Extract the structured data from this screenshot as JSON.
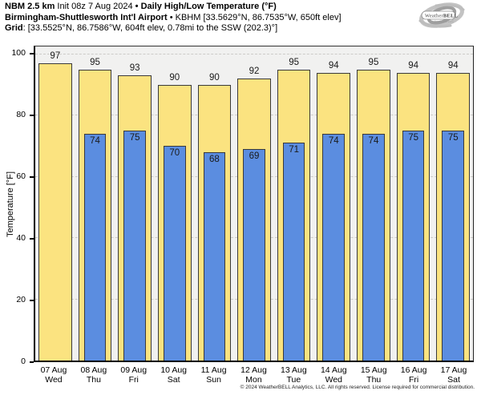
{
  "header": {
    "title_bold_prefix": "NBM 2.5 km",
    "title_regular": "Init 08z 7 Aug 2024",
    "title_bold_suffix": "• Daily High/Low Temperature (°F)",
    "subtitle_bold": "Birmingham-Shuttlesworth Int'l Airport",
    "subtitle_regular": "• KBHM [33.5629°N, 86.7535°W, 650ft elev]",
    "grid_label": "Grid",
    "grid_value": ": [33.5525°N, 86.7586°W, 604ft elev, 0.78mi to the SSW (202.3)°]"
  },
  "logo": {
    "part1": "Weather",
    "part2": "BELL",
    "sub": "Analytics LLC"
  },
  "chart_data": {
    "type": "bar",
    "title": "Daily High/Low Temperature (°F)",
    "ylabel": "Temperature [°F]",
    "yticks": [
      0,
      20,
      40,
      60,
      80,
      100
    ],
    "ylim": [
      0,
      102.5
    ],
    "grid": "horizontal-dashed",
    "legend": "none",
    "plot_bg": "#f1f1f0",
    "categories": [
      {
        "date": "07 Aug",
        "day": "Wed"
      },
      {
        "date": "08 Aug",
        "day": "Thu"
      },
      {
        "date": "09 Aug",
        "day": "Fri"
      },
      {
        "date": "10 Aug",
        "day": "Sat"
      },
      {
        "date": "11 Aug",
        "day": "Sun"
      },
      {
        "date": "12 Aug",
        "day": "Mon"
      },
      {
        "date": "13 Aug",
        "day": "Tue"
      },
      {
        "date": "14 Aug",
        "day": "Wed"
      },
      {
        "date": "15 Aug",
        "day": "Thu"
      },
      {
        "date": "16 Aug",
        "day": "Fri"
      },
      {
        "date": "17 Aug",
        "day": "Sat"
      }
    ],
    "series": [
      {
        "name": "High",
        "color": "#FBE380",
        "values": [
          97,
          95,
          93,
          90,
          90,
          92,
          95,
          94,
          95,
          94,
          94
        ]
      },
      {
        "name": "Low",
        "color": "#5B8DE0",
        "values": [
          null,
          74,
          75,
          70,
          68,
          69,
          71,
          74,
          74,
          75,
          75
        ]
      }
    ]
  },
  "footer": {
    "copyright": "© 2024 WeatherBELL Analytics, LLC. All rights reserved. License required for commercial distribution."
  }
}
